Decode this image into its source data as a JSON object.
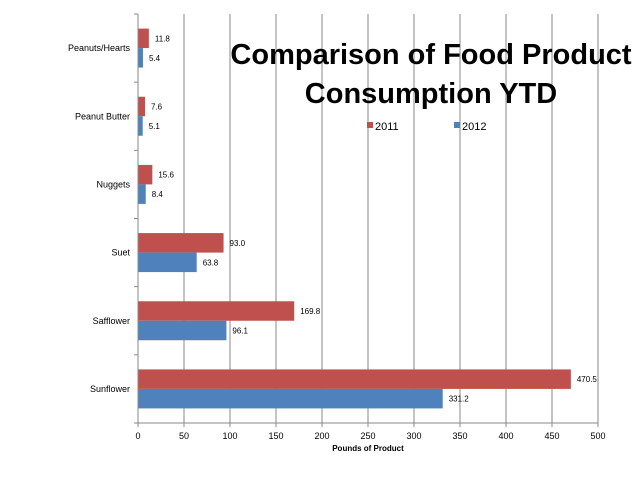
{
  "chart_data": {
    "type": "bar",
    "orientation": "horizontal",
    "title_lines": [
      "Comparison of Food Product",
      "Consumption YTD"
    ],
    "categories": [
      "Peanuts/Hearts",
      "Peanut Butter",
      "Nuggets",
      "Suet",
      "Safflower",
      "Sunflower"
    ],
    "series": [
      {
        "name": "2011",
        "color": "#c0504d",
        "values": [
          11.8,
          7.6,
          15.6,
          93.0,
          169.8,
          470.5
        ],
        "labels": [
          "11.8",
          "7.6",
          "15.6",
          "93.0",
          "169.8",
          "470.5"
        ]
      },
      {
        "name": "2012",
        "color": "#4f81bd",
        "values": [
          5.4,
          5.1,
          8.4,
          63.8,
          96.1,
          331.2
        ],
        "labels": [
          "5.4",
          "5.1",
          "8.4",
          "63.8",
          "96.1",
          "331.2"
        ]
      }
    ],
    "xlabel": "Pounds of Product",
    "ylabel": "",
    "xlim": [
      0,
      500
    ],
    "xticks": [
      0,
      50,
      100,
      150,
      200,
      250,
      300,
      350,
      400,
      450,
      500
    ],
    "grid": true,
    "legend": "top-right"
  }
}
